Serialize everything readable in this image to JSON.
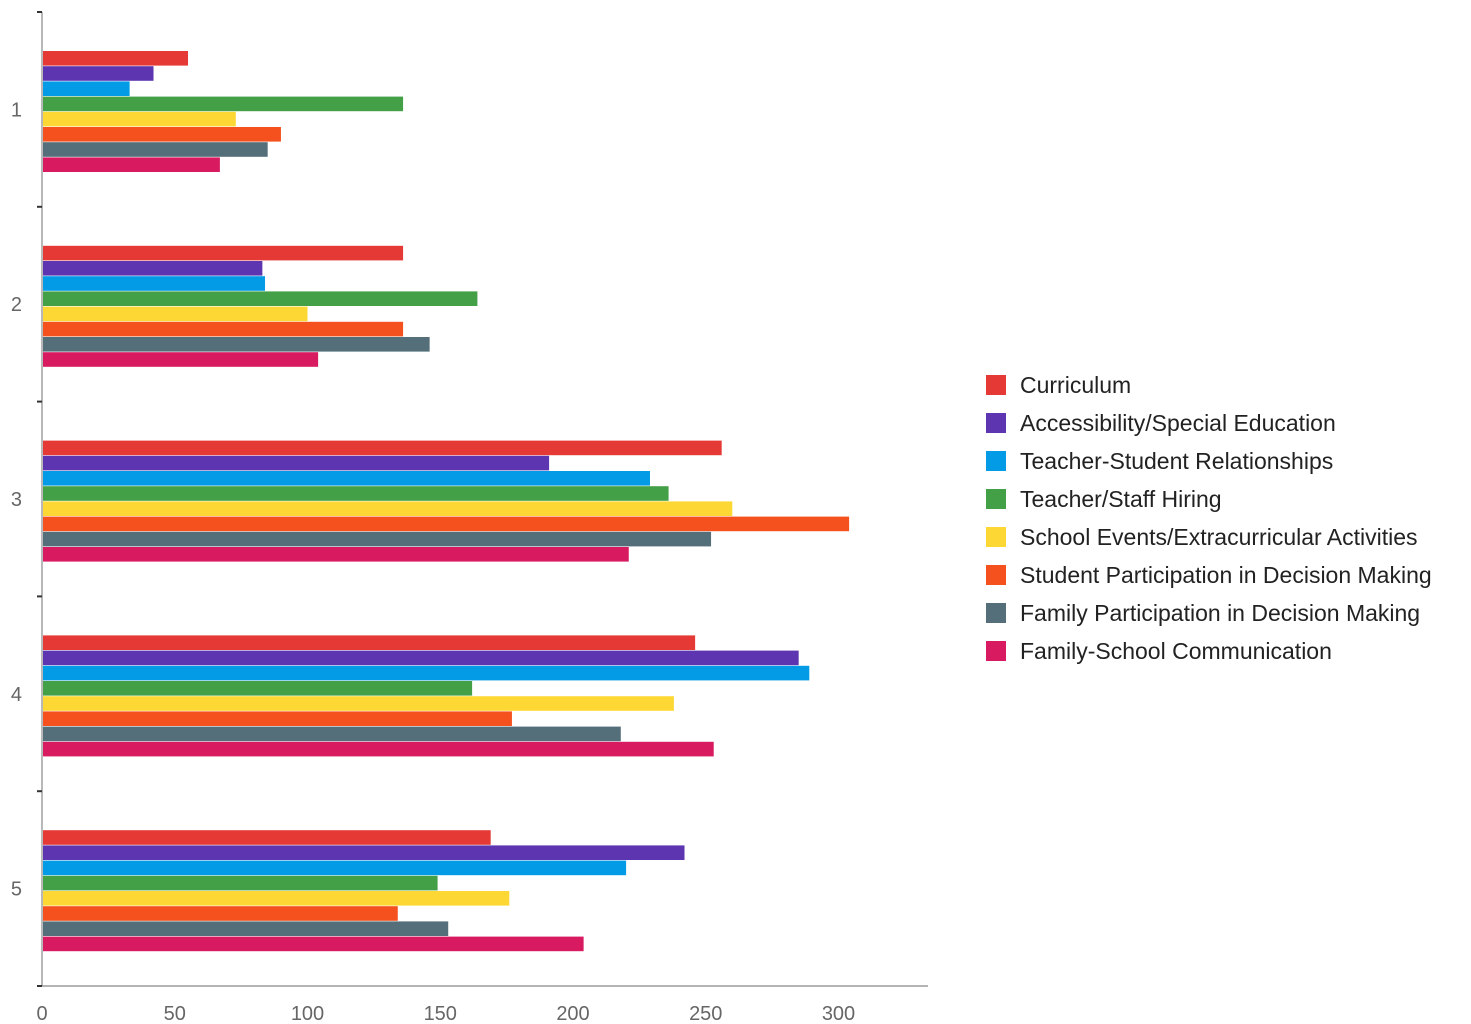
{
  "chart_data": {
    "type": "bar",
    "orientation": "horizontal",
    "categories": [
      "1",
      "2",
      "3",
      "4",
      "5"
    ],
    "series": [
      {
        "name": "Curriculum",
        "color": "#e53935",
        "values": [
          55,
          136,
          256,
          246,
          169
        ]
      },
      {
        "name": "Accessibility/Special Education",
        "color": "#5e35b1",
        "values": [
          42,
          83,
          191,
          285,
          242
        ]
      },
      {
        "name": "Teacher-Student Relationships",
        "color": "#039be5",
        "values": [
          33,
          84,
          229,
          289,
          220
        ]
      },
      {
        "name": "Teacher/Staff Hiring",
        "color": "#43a047",
        "values": [
          136,
          164,
          236,
          162,
          149
        ]
      },
      {
        "name": "School Events/Extracurricular Activities",
        "color": "#fdd835",
        "values": [
          73,
          100,
          260,
          238,
          176
        ]
      },
      {
        "name": "Student Participation in Decision Making",
        "color": "#f4511e",
        "values": [
          90,
          136,
          304,
          177,
          134
        ]
      },
      {
        "name": "Family Participation in Decision Making",
        "color": "#546e7a",
        "values": [
          85,
          146,
          252,
          218,
          153
        ]
      },
      {
        "name": "Family-School Communication",
        "color": "#d81b60",
        "values": [
          67,
          104,
          221,
          253,
          204
        ]
      }
    ],
    "xlim": [
      0,
      334
    ],
    "xticks": [
      0,
      50,
      100,
      150,
      200,
      250,
      300
    ],
    "title": "",
    "xlabel": "",
    "ylabel": "",
    "grid": false,
    "legend_position": "right"
  }
}
